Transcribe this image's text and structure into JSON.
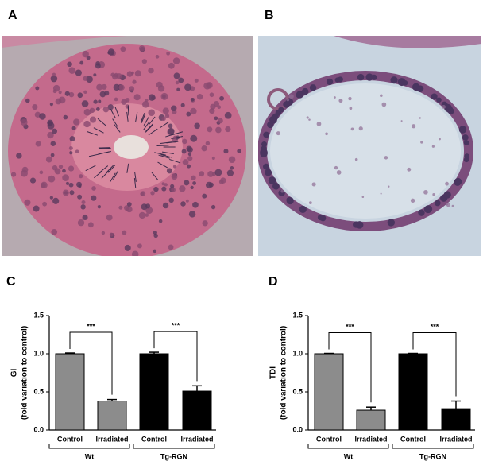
{
  "panel_labels": [
    "A",
    "B",
    "C",
    "D"
  ],
  "chart_data": [
    {
      "type": "bar",
      "ylabel": "GI",
      "ylabel_sub": "(fold variation to control)",
      "categories": [
        "Control",
        "Irradiated",
        "Control",
        "Irradiated"
      ],
      "values": [
        1.0,
        0.38,
        1.0,
        0.51
      ],
      "errors": [
        0.01,
        0.02,
        0.02,
        0.07
      ],
      "colors": [
        "#8c8c8c",
        "#8c8c8c",
        "#000000",
        "#000000"
      ],
      "groups": [
        {
          "name": "Wt",
          "significance": "***"
        },
        {
          "name": "Tg-RGN",
          "significance": "***"
        }
      ],
      "ylim": [
        0,
        1.5
      ],
      "yticks": [
        {
          "value": 0,
          "label": "0.0"
        },
        0.5,
        {
          "value": 1,
          "label": "1.0"
        },
        1.5
      ]
    },
    {
      "type": "bar",
      "ylabel": "TDI",
      "ylabel_sub": "(fold variation to control)",
      "categories": [
        "Control",
        "Irradiated",
        "Control",
        "Irradiated"
      ],
      "values": [
        1.0,
        0.26,
        1.0,
        0.28
      ],
      "errors": [
        0.005,
        0.04,
        0.005,
        0.1
      ],
      "colors": [
        "#8c8c8c",
        "#8c8c8c",
        "#000000",
        "#000000"
      ],
      "groups": [
        {
          "name": "Wt",
          "significance": "***"
        },
        {
          "name": "Tg-RGN",
          "significance": "***"
        }
      ],
      "ylim": [
        0,
        1.5
      ],
      "yticks": [
        {
          "value": 0,
          "label": "0.0"
        },
        0.5,
        {
          "value": 1,
          "label": "1.0"
        },
        1.5
      ]
    }
  ]
}
